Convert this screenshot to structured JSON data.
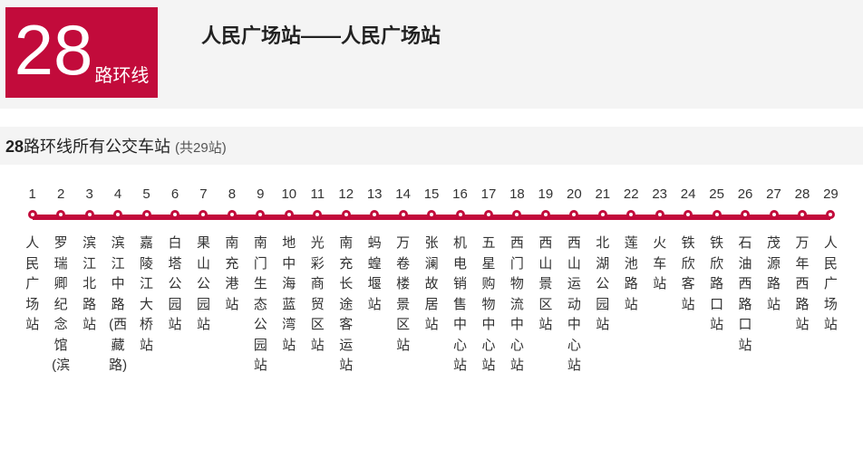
{
  "header": {
    "route_number": "28",
    "route_suffix": "路环线",
    "title": "人民广场站——人民广场站"
  },
  "section": {
    "prefix_bold": "28",
    "title_rest": "路环线所有公交车站",
    "count_label": "(共29站)"
  },
  "brand_color": "#c20b3b",
  "stops": [
    "人民广场站",
    "罗瑞卿纪念馆(滨",
    "滨江北路站",
    "滨江中路(西藏路)",
    "嘉陵江大桥站",
    "白塔公园站",
    "果山公园站",
    "南充港站",
    "南门生态公园站",
    "地中海蓝湾站",
    "光彩商贸区站",
    "南充长途客运站",
    "蚂蝗堰站",
    "万卷楼景区站",
    "张澜故居站",
    "机电销售中心站",
    "五星购物中心站",
    "西门物流中心站",
    "西山景区站",
    "西山运动中心站",
    "北湖公园站",
    "莲池路站",
    "火车站",
    "铁欣客站",
    "铁欣路口站",
    "石油西路口站",
    "茂源路站",
    "万年西路站",
    "人民广场站"
  ]
}
